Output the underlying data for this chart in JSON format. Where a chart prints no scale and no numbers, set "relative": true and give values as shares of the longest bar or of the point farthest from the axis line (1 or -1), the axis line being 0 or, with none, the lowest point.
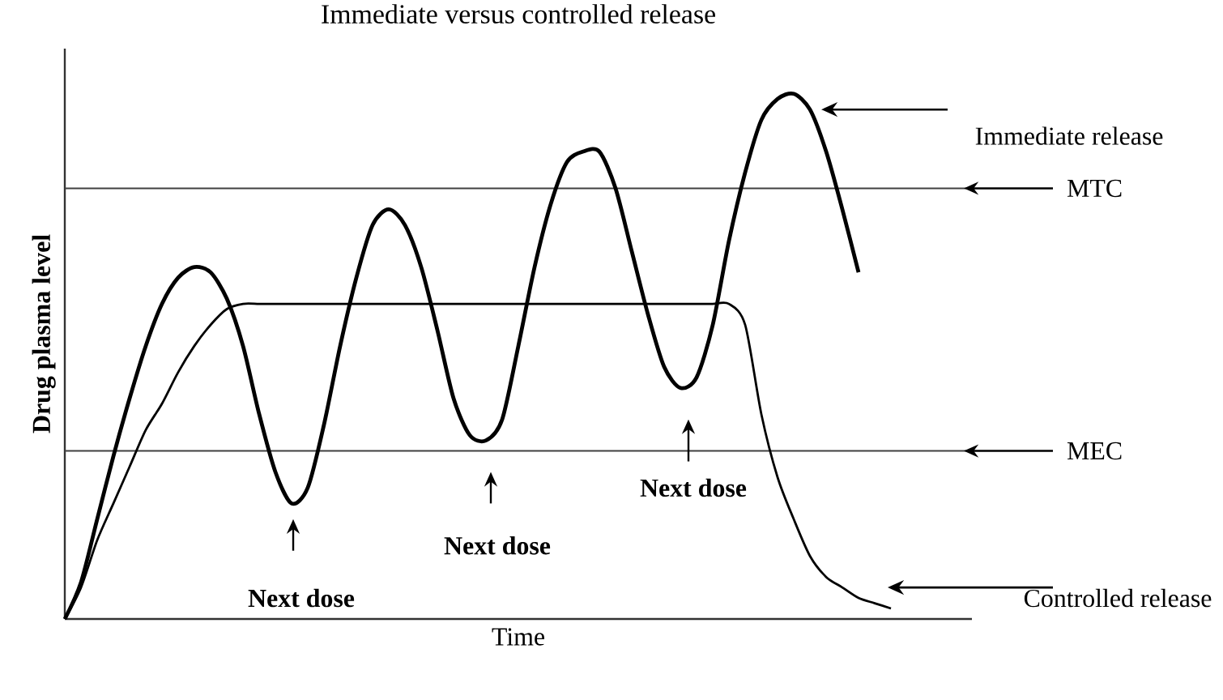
{
  "chart_data": {
    "type": "line",
    "title": "Immediate versus controlled release",
    "xlabel": "Time",
    "ylabel": "Drug plasma level",
    "relative": true,
    "categories": [
      null,
      null,
      null,
      null,
      null,
      null,
      null,
      null,
      null,
      null,
      null,
      null,
      null,
      null,
      null,
      null,
      null,
      null,
      null,
      null,
      null,
      null,
      null,
      null,
      null,
      null,
      null,
      null,
      null,
      null,
      null,
      null,
      null,
      null,
      null,
      null,
      null,
      null,
      null,
      null,
      null,
      null,
      null,
      null,
      null,
      null,
      null,
      null,
      null,
      null,
      null,
      null,
      null,
      null
    ],
    "series": [
      {
        "name": "Immediate release",
        "color": "#000000",
        "values": [
          0,
          0.07,
          0.19,
          0.31,
          0.42,
          0.52,
          0.6,
          0.65,
          0.67,
          0.66,
          0.61,
          0.52,
          0.39,
          0.28,
          0.22,
          0.25,
          0.37,
          0.52,
          0.65,
          0.75,
          0.78,
          0.75,
          0.67,
          0.55,
          0.42,
          0.35,
          0.34,
          0.38,
          0.52,
          0.67,
          0.79,
          0.87,
          0.89,
          0.89,
          0.82,
          0.7,
          0.58,
          0.48,
          0.44,
          0.46,
          0.56,
          0.72,
          0.85,
          0.95,
          0.99,
          1,
          0.97,
          0.89,
          0.78,
          0.66,
          null,
          null,
          null,
          null
        ]
      },
      {
        "name": "Controlled release",
        "color": "#000000",
        "values": [
          0,
          0.06,
          0.15,
          0.22,
          0.29,
          0.36,
          0.41,
          0.47,
          0.52,
          0.56,
          0.59,
          0.6,
          0.6,
          0.6,
          0.6,
          0.6,
          0.6,
          0.6,
          0.6,
          0.6,
          0.6,
          0.6,
          0.6,
          0.6,
          0.6,
          0.6,
          0.6,
          0.6,
          0.6,
          0.6,
          0.6,
          0.6,
          0.6,
          0.6,
          0.6,
          0.6,
          0.6,
          0.6,
          0.6,
          0.6,
          0.6,
          0.6,
          0.56,
          0.39,
          0.27,
          0.19,
          0.12,
          0.08,
          0.06,
          0.04,
          0.03,
          0.02,
          null,
          null
        ]
      }
    ],
    "ref_lines": [
      {
        "axis": "y",
        "value": 0.82,
        "label": "MTC"
      },
      {
        "axis": "y",
        "value": 0.32,
        "label": "MEC"
      }
    ],
    "annotations": [
      "Next dose",
      "Next dose",
      "Next dose"
    ]
  }
}
